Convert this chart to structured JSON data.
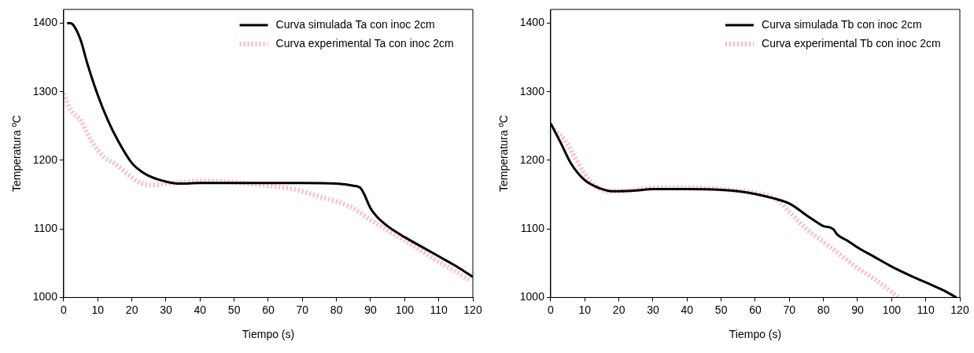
{
  "chart_data": [
    {
      "type": "line",
      "xlabel": "Tiempo (s)",
      "ylabel": "Temperatura ºC",
      "xlim": [
        0,
        120
      ],
      "ylim": [
        1000,
        1420
      ],
      "xticks": [
        0,
        10,
        20,
        30,
        40,
        50,
        60,
        70,
        80,
        90,
        100,
        110,
        120
      ],
      "yticks": [
        1000,
        1100,
        1200,
        1300,
        1400
      ],
      "grid": false,
      "legend": "top right",
      "marker": "none",
      "series": [
        {
          "name": "Curva simulada Ta con inoc 2cm",
          "color": "#000000",
          "line_style": "solid",
          "x": [
            1,
            2,
            3,
            5,
            7,
            10,
            13,
            16,
            20,
            23,
            26,
            30,
            34,
            40,
            50,
            60,
            70,
            80,
            85,
            87,
            88,
            90,
            92,
            95,
            100,
            105,
            110,
            115,
            120
          ],
          "values": [
            1400,
            1400,
            1396,
            1375,
            1340,
            1295,
            1258,
            1228,
            1196,
            1183,
            1175,
            1169,
            1166,
            1167,
            1167,
            1167,
            1167,
            1166,
            1163,
            1160,
            1152,
            1130,
            1117,
            1104,
            1088,
            1074,
            1060,
            1046,
            1030
          ]
        },
        {
          "name": "Curva experimental Ta con inoc 2cm",
          "color": "#ffb6c1",
          "line_style": "dashed",
          "x": [
            0,
            2,
            5,
            8,
            12,
            15,
            20,
            23,
            27,
            30,
            35,
            40,
            50,
            60,
            65,
            70,
            75,
            80,
            85,
            90,
            95,
            100,
            105,
            110,
            115,
            119
          ],
          "values": [
            1297,
            1274,
            1258,
            1229,
            1204,
            1195,
            1175,
            1166,
            1164,
            1166,
            1168,
            1170,
            1168,
            1163,
            1160,
            1155,
            1147,
            1140,
            1130,
            1113,
            1098,
            1083,
            1068,
            1052,
            1038,
            1025
          ]
        }
      ]
    },
    {
      "type": "line",
      "xlabel": "Tiempo (s)",
      "ylabel": "Temperatura ºC",
      "xlim": [
        0,
        120
      ],
      "ylim": [
        1000,
        1420
      ],
      "xticks": [
        0,
        10,
        20,
        30,
        40,
        50,
        60,
        70,
        80,
        90,
        100,
        110,
        120
      ],
      "yticks": [
        1000,
        1100,
        1200,
        1300,
        1400
      ],
      "grid": false,
      "legend": "top right",
      "marker": "none",
      "series": [
        {
          "name": "Curva simulada Tb con inoc 2cm",
          "color": "#000000",
          "line_style": "solid",
          "x": [
            0,
            3,
            6,
            10,
            14,
            18,
            20,
            25,
            30,
            40,
            50,
            55,
            60,
            65,
            70,
            75,
            78,
            80,
            82,
            83,
            84,
            87,
            90,
            95,
            100,
            105,
            110,
            115,
            119
          ],
          "values": [
            1254,
            1225,
            1195,
            1171,
            1160,
            1155,
            1155,
            1156,
            1158,
            1158,
            1157,
            1155,
            1151,
            1145,
            1137,
            1120,
            1110,
            1104,
            1102,
            1099,
            1092,
            1083,
            1073,
            1059,
            1045,
            1033,
            1022,
            1011,
            1000
          ]
        },
        {
          "name": "Curva experimental Tb con inoc 2cm",
          "color": "#ffb6c1",
          "line_style": "dashed",
          "x": [
            1,
            4,
            7,
            10,
            13,
            17,
            20,
            25,
            30,
            40,
            50,
            60,
            65,
            68,
            70,
            75,
            80,
            85,
            90,
            95,
            99,
            102
          ],
          "values": [
            1245,
            1230,
            1205,
            1180,
            1163,
            1155,
            1155,
            1157,
            1160,
            1160,
            1158,
            1152,
            1146,
            1136,
            1125,
            1100,
            1081,
            1062,
            1043,
            1027,
            1012,
            1000
          ]
        }
      ]
    }
  ]
}
